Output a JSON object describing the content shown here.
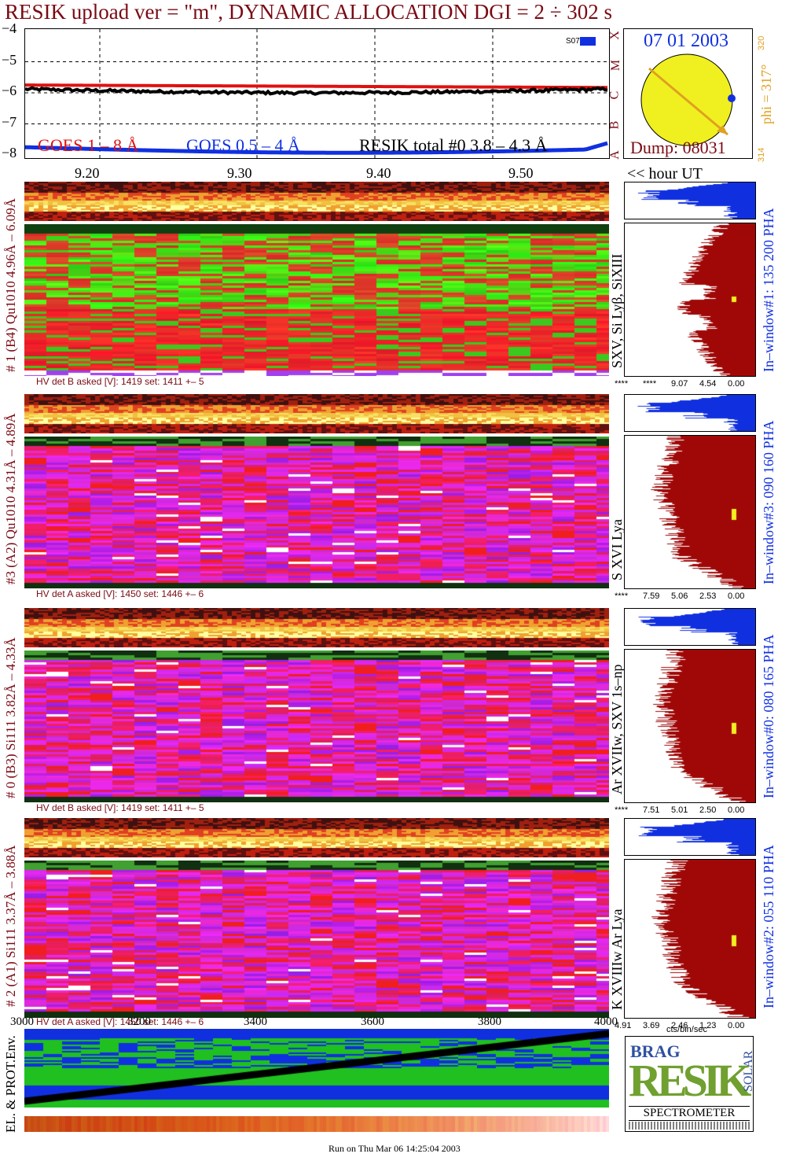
{
  "header": {
    "title": "RESIK upload ver = \"m\", DYNAMIC ALLOCATION  DGI =   2 ÷ 302 s"
  },
  "lightcurve": {
    "y_ticks": [
      "−4",
      "−5",
      "−6",
      "−7",
      "−8"
    ],
    "class_letters": [
      "A",
      "B",
      "C",
      "M",
      "X"
    ],
    "legend_goes1": "GOES 1 – 8 Å",
    "legend_goes05": "GOES 0.5 – 4 Å",
    "legend_resik": "RESIK total #0  3.8 – 4.3 Å",
    "marker": "S07",
    "colors": {
      "goes1": "#e01010",
      "goes05": "#1030e0",
      "resik": "#000000"
    }
  },
  "sun": {
    "date": "07 01 2003",
    "dump": "Dump: 08031",
    "phi": "phi = 317°",
    "phi_top": "320",
    "phi_bottom": "314"
  },
  "time_axis": {
    "ticks": [
      "9.20",
      "9.30",
      "9.40",
      "9.50"
    ],
    "unit_label": "<< hour UT"
  },
  "channels": [
    {
      "left_label": "# 1 (B4) Qu1010 4.96Å – 6.09Å",
      "hv": "HV det B asked [V]:  1419 set:  1411 +–    5",
      "line_label": "SXV, Si Lyβ, SiXIII",
      "window": "In–window#1:  135 200 PHA",
      "axis_ticks": [
        "****",
        "****",
        "9.07",
        "4.54",
        "0.00"
      ],
      "scheme": "green"
    },
    {
      "left_label": "#3 (A2) Qu1010  4.31Å – 4.89Å",
      "hv": "HV det A asked [V]:  1450 set:  1446 +–    6",
      "line_label": "S XVI Lya",
      "window": "In–window#3:  090 160 PHA",
      "axis_ticks": [
        "****",
        "7.59",
        "5.06",
        "2.53",
        "0.00"
      ],
      "scheme": "purple"
    },
    {
      "left_label": "# 0 (B3) Si111  3.82Å – 4.33Å",
      "hv": "HV det B asked [V]:  1419 set:  1411 +–    5",
      "line_label": "Ar XVIIw, SXV 1s–np",
      "window": "In–window#0:  080 165 PHA",
      "axis_ticks": [
        "****",
        "7.51",
        "5.01",
        "2.50",
        "0.00"
      ],
      "scheme": "purple"
    },
    {
      "left_label": "# 2 (A1) Si111  3.37Å – 3.88Å",
      "hv": "HV det A asked [V]:  1450 set:  1446 +–    6",
      "line_label": "K XVIIIw  Ar Lya",
      "window": "In–window#2:  055 110 PHA",
      "axis_ticks": [
        "4.91",
        "3.69",
        "2.46",
        "1.23",
        "0.00"
      ],
      "scheme": "purple"
    }
  ],
  "env": {
    "label": "EL. & PROT.Env.",
    "x_ticks": [
      "3000",
      "3200",
      "3400",
      "3600",
      "3800",
      "4000"
    ]
  },
  "cts_label": "cts/bin/sec",
  "logo": {
    "letters_top": "BRAG",
    "word": "RESIK",
    "side": "SOLAR",
    "caption": "SPECTROMETER"
  },
  "footer": "Run on Thu Mar 06 14:25:04 2003"
}
